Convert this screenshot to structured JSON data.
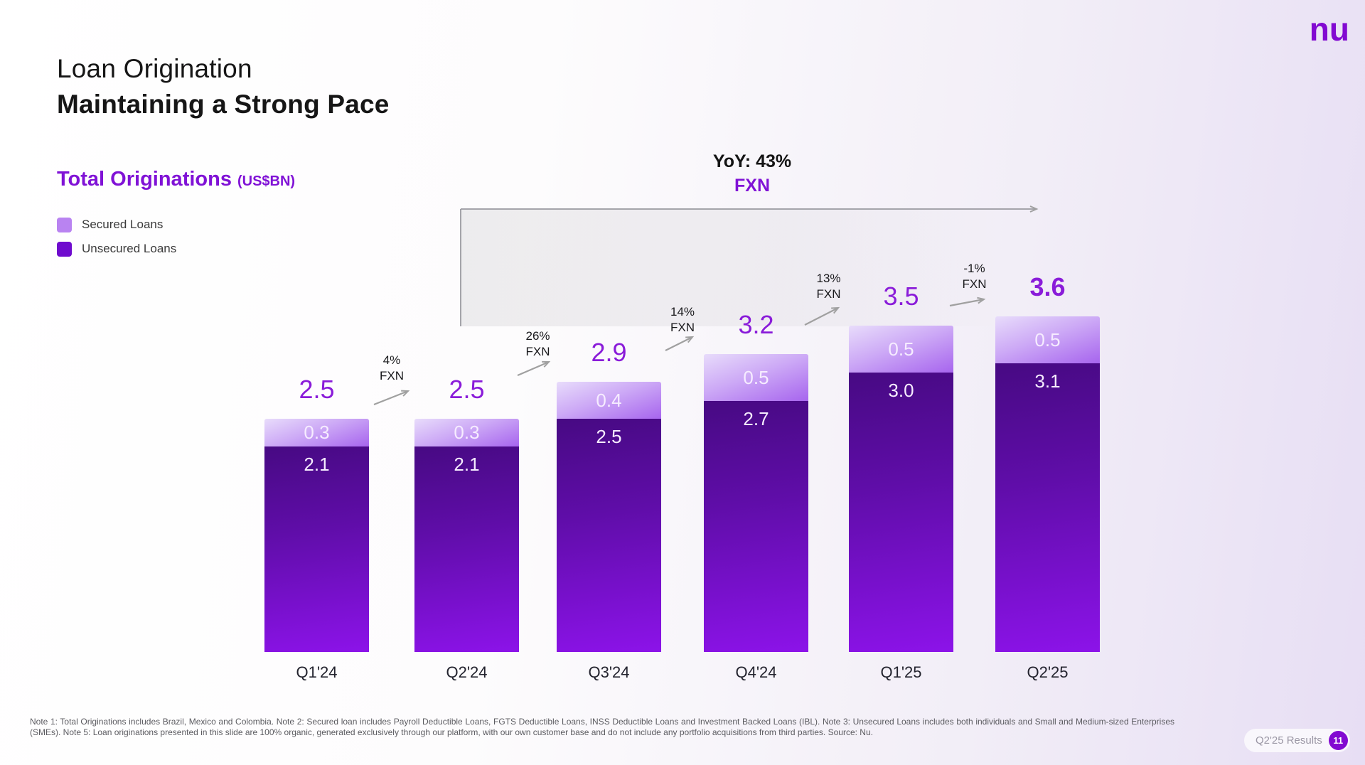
{
  "slide": {
    "title_line1": "Loan Origination",
    "title_line2": "Maintaining a Strong Pace",
    "section_title": "Total Originations",
    "section_unit": "(US$BN)",
    "logo_text": "nu",
    "notes": "Note 1: Total Originations includes Brazil, Mexico and Colombia. Note 2: Secured loan includes Payroll Deductible Loans, FGTS Deductible Loans, INSS Deductible Loans and Investment Backed Loans (IBL). Note 3: Unsecured Loans includes both individuals and Small and Medium-sized Enterprises (SMEs). Note 5: Loan originations presented in this slide are 100% organic, generated exclusively through our platform, with our own customer base and do not include any portfolio acquisitions from third parties. Source: Nu.",
    "footer_badge": {
      "label": "Q2'25 Results",
      "page": "11"
    }
  },
  "legend": [
    {
      "label": "Secured Loans",
      "color": "#b983f1"
    },
    {
      "label": "Unsecured Loans",
      "color": "#6f0bce"
    }
  ],
  "yoy_annotation": {
    "line1": "YoY: 43%",
    "line2": "FXN"
  },
  "chart_data": {
    "type": "bar",
    "stacked": true,
    "title": "Total Originations",
    "unit": "US$BN",
    "categories": [
      "Q1'24",
      "Q2'24",
      "Q3'24",
      "Q4'24",
      "Q1'25",
      "Q2'25"
    ],
    "series": [
      {
        "name": "Unsecured Loans",
        "values": [
          2.1,
          2.1,
          2.5,
          2.7,
          3.0,
          3.1
        ]
      },
      {
        "name": "Secured Loans",
        "values": [
          0.3,
          0.3,
          0.4,
          0.5,
          0.5,
          0.5
        ]
      }
    ],
    "totals": [
      2.5,
      2.5,
      2.9,
      3.2,
      3.5,
      3.6
    ],
    "qoq_fxn_change": [
      "4%",
      "26%",
      "14%",
      "13%",
      "-1%"
    ],
    "qoq_suffix": "FXN",
    "yoy_fxn_change": "43%",
    "ylim": [
      0,
      3.6
    ],
    "grid": false,
    "legend_position": "top-left",
    "colors": {
      "brand": "#820ad1",
      "accent": "#8012d6",
      "total_label": "#8a1cd9",
      "secured_deep": "#a765ee",
      "unsecured_top": "#470a83",
      "unsecured_bottom": "#8c13e9",
      "arrow_gray": "#a0a0a0"
    }
  }
}
